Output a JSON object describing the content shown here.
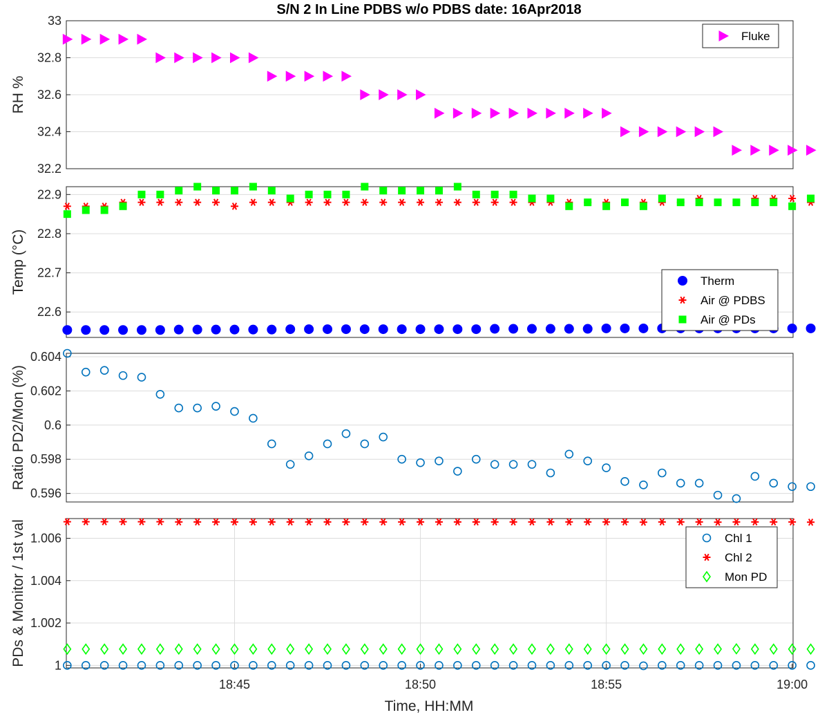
{
  "title": "S/N 2 In Line PDBS w/o PDBS date: 16Apr2018",
  "xlabel": "Time, HH:MM",
  "chart_data": [
    {
      "type": "scatter",
      "ylabel": "RH %",
      "ylim": [
        32.2,
        33.0
      ],
      "yticks": [
        "33",
        "32.8",
        "32.6",
        "32.4",
        "32.2"
      ],
      "ytick_values": [
        33.0,
        32.8,
        32.6,
        32.4,
        32.2
      ],
      "grid": true,
      "legend_position": "top-right",
      "x": [
        0,
        1,
        2,
        3,
        4,
        5,
        6,
        7,
        8,
        9,
        10,
        11,
        12,
        13,
        14,
        15,
        16,
        17,
        18,
        19,
        20,
        21,
        22,
        23,
        24,
        25,
        26,
        27,
        28,
        29,
        30,
        31,
        32,
        33,
        34,
        35,
        36,
        37,
        38,
        39,
        40
      ],
      "series": [
        {
          "name": "Fluke",
          "marker": "triangle-right",
          "color": "#ff00ff",
          "values": [
            32.9,
            32.9,
            32.9,
            32.9,
            32.9,
            32.8,
            32.8,
            32.8,
            32.8,
            32.8,
            32.8,
            32.7,
            32.7,
            32.7,
            32.7,
            32.7,
            32.6,
            32.6,
            32.6,
            32.6,
            32.5,
            32.5,
            32.5,
            32.5,
            32.5,
            32.5,
            32.5,
            32.5,
            32.5,
            32.5,
            32.4,
            32.4,
            32.4,
            32.4,
            32.4,
            32.4,
            32.3,
            32.3,
            32.3,
            32.3,
            32.3
          ]
        }
      ]
    },
    {
      "type": "scatter",
      "ylabel": "Temp (°C)",
      "ylim": [
        22.535,
        22.92
      ],
      "yticks": [
        "22.9",
        "22.8",
        "22.7",
        "22.6"
      ],
      "ytick_values": [
        22.9,
        22.8,
        22.7,
        22.6
      ],
      "grid": true,
      "legend_position": "bottom-right",
      "x": [
        0,
        1,
        2,
        3,
        4,
        5,
        6,
        7,
        8,
        9,
        10,
        11,
        12,
        13,
        14,
        15,
        16,
        17,
        18,
        19,
        20,
        21,
        22,
        23,
        24,
        25,
        26,
        27,
        28,
        29,
        30,
        31,
        32,
        33,
        34,
        35,
        36,
        37,
        38,
        39,
        40
      ],
      "series": [
        {
          "name": "Therm",
          "marker": "filled-circle",
          "color": "#0000ff",
          "values": [
            22.554,
            22.554,
            22.554,
            22.554,
            22.554,
            22.554,
            22.555,
            22.555,
            22.555,
            22.555,
            22.555,
            22.555,
            22.556,
            22.556,
            22.556,
            22.556,
            22.556,
            22.556,
            22.556,
            22.556,
            22.556,
            22.556,
            22.556,
            22.557,
            22.557,
            22.557,
            22.557,
            22.557,
            22.557,
            22.558,
            22.558,
            22.558,
            22.558,
            22.558,
            22.558,
            22.558,
            22.558,
            22.558,
            22.558,
            22.558,
            22.558
          ]
        },
        {
          "name": "Air @ PDBS",
          "marker": "asterisk",
          "color": "#ff0000",
          "values": [
            22.87,
            22.87,
            22.87,
            22.88,
            22.88,
            22.88,
            22.88,
            22.88,
            22.88,
            22.87,
            22.88,
            22.88,
            22.88,
            22.88,
            22.88,
            22.88,
            22.88,
            22.88,
            22.88,
            22.88,
            22.88,
            22.88,
            22.88,
            22.88,
            22.88,
            22.88,
            22.88,
            22.88,
            22.88,
            22.88,
            22.88,
            22.88,
            22.88,
            22.88,
            22.89,
            22.88,
            22.88,
            22.89,
            22.89,
            22.89,
            22.88
          ]
        },
        {
          "name": "Air @ PDs",
          "marker": "filled-square",
          "color": "#00ff00",
          "values": [
            22.85,
            22.86,
            22.86,
            22.87,
            22.9,
            22.9,
            22.91,
            22.92,
            22.91,
            22.91,
            22.92,
            22.91,
            22.89,
            22.9,
            22.9,
            22.9,
            22.92,
            22.91,
            22.91,
            22.91,
            22.91,
            22.92,
            22.9,
            22.9,
            22.9,
            22.89,
            22.89,
            22.87,
            22.88,
            22.87,
            22.88,
            22.87,
            22.89,
            22.88,
            22.88,
            22.88,
            22.88,
            22.88,
            22.88,
            22.87,
            22.89
          ]
        }
      ]
    },
    {
      "type": "scatter",
      "ylabel": "Ratio PD2/Mon (%)",
      "ylim": [
        0.5955,
        0.6042
      ],
      "yticks": [
        "0.604",
        "0.602",
        "0.6",
        "0.598",
        "0.596"
      ],
      "ytick_values": [
        0.604,
        0.602,
        0.6,
        0.598,
        0.596
      ],
      "grid": true,
      "x": [
        0,
        1,
        2,
        3,
        4,
        5,
        6,
        7,
        8,
        9,
        10,
        11,
        12,
        13,
        14,
        15,
        16,
        17,
        18,
        19,
        20,
        21,
        22,
        23,
        24,
        25,
        26,
        27,
        28,
        29,
        30,
        31,
        32,
        33,
        34,
        35,
        36,
        37,
        38,
        39,
        40
      ],
      "series": [
        {
          "marker": "open-circle",
          "color": "#0072bd",
          "values": [
            0.6042,
            0.6031,
            0.6032,
            0.6029,
            0.6028,
            0.6018,
            0.601,
            0.601,
            0.6011,
            0.6008,
            0.6004,
            0.5989,
            0.5977,
            0.5982,
            0.5989,
            0.5995,
            0.5989,
            0.5993,
            0.598,
            0.5978,
            0.5979,
            0.5973,
            0.598,
            0.5977,
            0.5977,
            0.5977,
            0.5972,
            0.5983,
            0.5979,
            0.5975,
            0.5967,
            0.5965,
            0.5972,
            0.5966,
            0.5966,
            0.5959,
            0.5957,
            0.597,
            0.5966,
            0.5964,
            0.5964
          ]
        }
      ]
    },
    {
      "type": "scatter",
      "ylabel": "PDs & Monitor / 1st val",
      "ylim": [
        0.99988,
        1.00693
      ],
      "yticks": [
        "1.006",
        "1.004",
        "1.002",
        "1"
      ],
      "ytick_values": [
        1.006,
        1.004,
        1.002,
        1.0
      ],
      "xticks": [
        "18:45",
        "18:50",
        "18:55",
        "19:00"
      ],
      "xtick_values": [
        9,
        19,
        29,
        39
      ],
      "grid": true,
      "legend_position": "top-right",
      "x": [
        0,
        1,
        2,
        3,
        4,
        5,
        6,
        7,
        8,
        9,
        10,
        11,
        12,
        13,
        14,
        15,
        16,
        17,
        18,
        19,
        20,
        21,
        22,
        23,
        24,
        25,
        26,
        27,
        28,
        29,
        30,
        31,
        32,
        33,
        34,
        35,
        36,
        37,
        38,
        39,
        40
      ],
      "series": [
        {
          "name": "Chl 1",
          "marker": "open-circle",
          "color": "#0072bd",
          "values": [
            1.0,
            1.0,
            1.0,
            1.0,
            1.0,
            1.0,
            1.0,
            1.0,
            1.0,
            1.0,
            1.0,
            1.0,
            1.0,
            1.0,
            1.0,
            1.0,
            1.0,
            1.0,
            1.0,
            1.0,
            1.0,
            1.0,
            1.0,
            1.0,
            1.0,
            1.0,
            1.0,
            1.0,
            1.0,
            1.0,
            1.0,
            0.99998,
            1.0,
            1.0,
            1.0,
            1.0,
            1.0,
            1.0,
            1.0,
            1.0,
            1.0
          ]
        },
        {
          "name": "Chl 2",
          "marker": "asterisk",
          "color": "#ff0000",
          "values": [
            1.00678,
            1.00678,
            1.00678,
            1.00678,
            1.00678,
            1.00678,
            1.00677,
            1.00677,
            1.00677,
            1.00677,
            1.00677,
            1.00677,
            1.00677,
            1.00677,
            1.00677,
            1.00677,
            1.00677,
            1.00677,
            1.00677,
            1.00677,
            1.00677,
            1.00677,
            1.00677,
            1.00677,
            1.00677,
            1.00677,
            1.00677,
            1.00677,
            1.00677,
            1.00677,
            1.00677,
            1.00676,
            1.00677,
            1.00677,
            1.00677,
            1.00676,
            1.00677,
            1.00677,
            1.00677,
            1.00677,
            1.00676
          ]
        },
        {
          "name": "Mon PD",
          "marker": "open-diamond",
          "color": "#00ff00",
          "values": [
            1.00077,
            1.00077,
            1.00077,
            1.00077,
            1.00077,
            1.00077,
            1.00077,
            1.00077,
            1.00077,
            1.00077,
            1.00077,
            1.00077,
            1.00077,
            1.00077,
            1.00077,
            1.00077,
            1.00077,
            1.00077,
            1.00077,
            1.00077,
            1.00077,
            1.00077,
            1.00077,
            1.00077,
            1.00077,
            1.00077,
            1.00077,
            1.00077,
            1.00077,
            1.00077,
            1.00077,
            1.00077,
            1.00077,
            1.00077,
            1.00077,
            1.00077,
            1.00078,
            1.00077,
            1.00077,
            1.00077,
            1.00077
          ]
        }
      ]
    }
  ]
}
